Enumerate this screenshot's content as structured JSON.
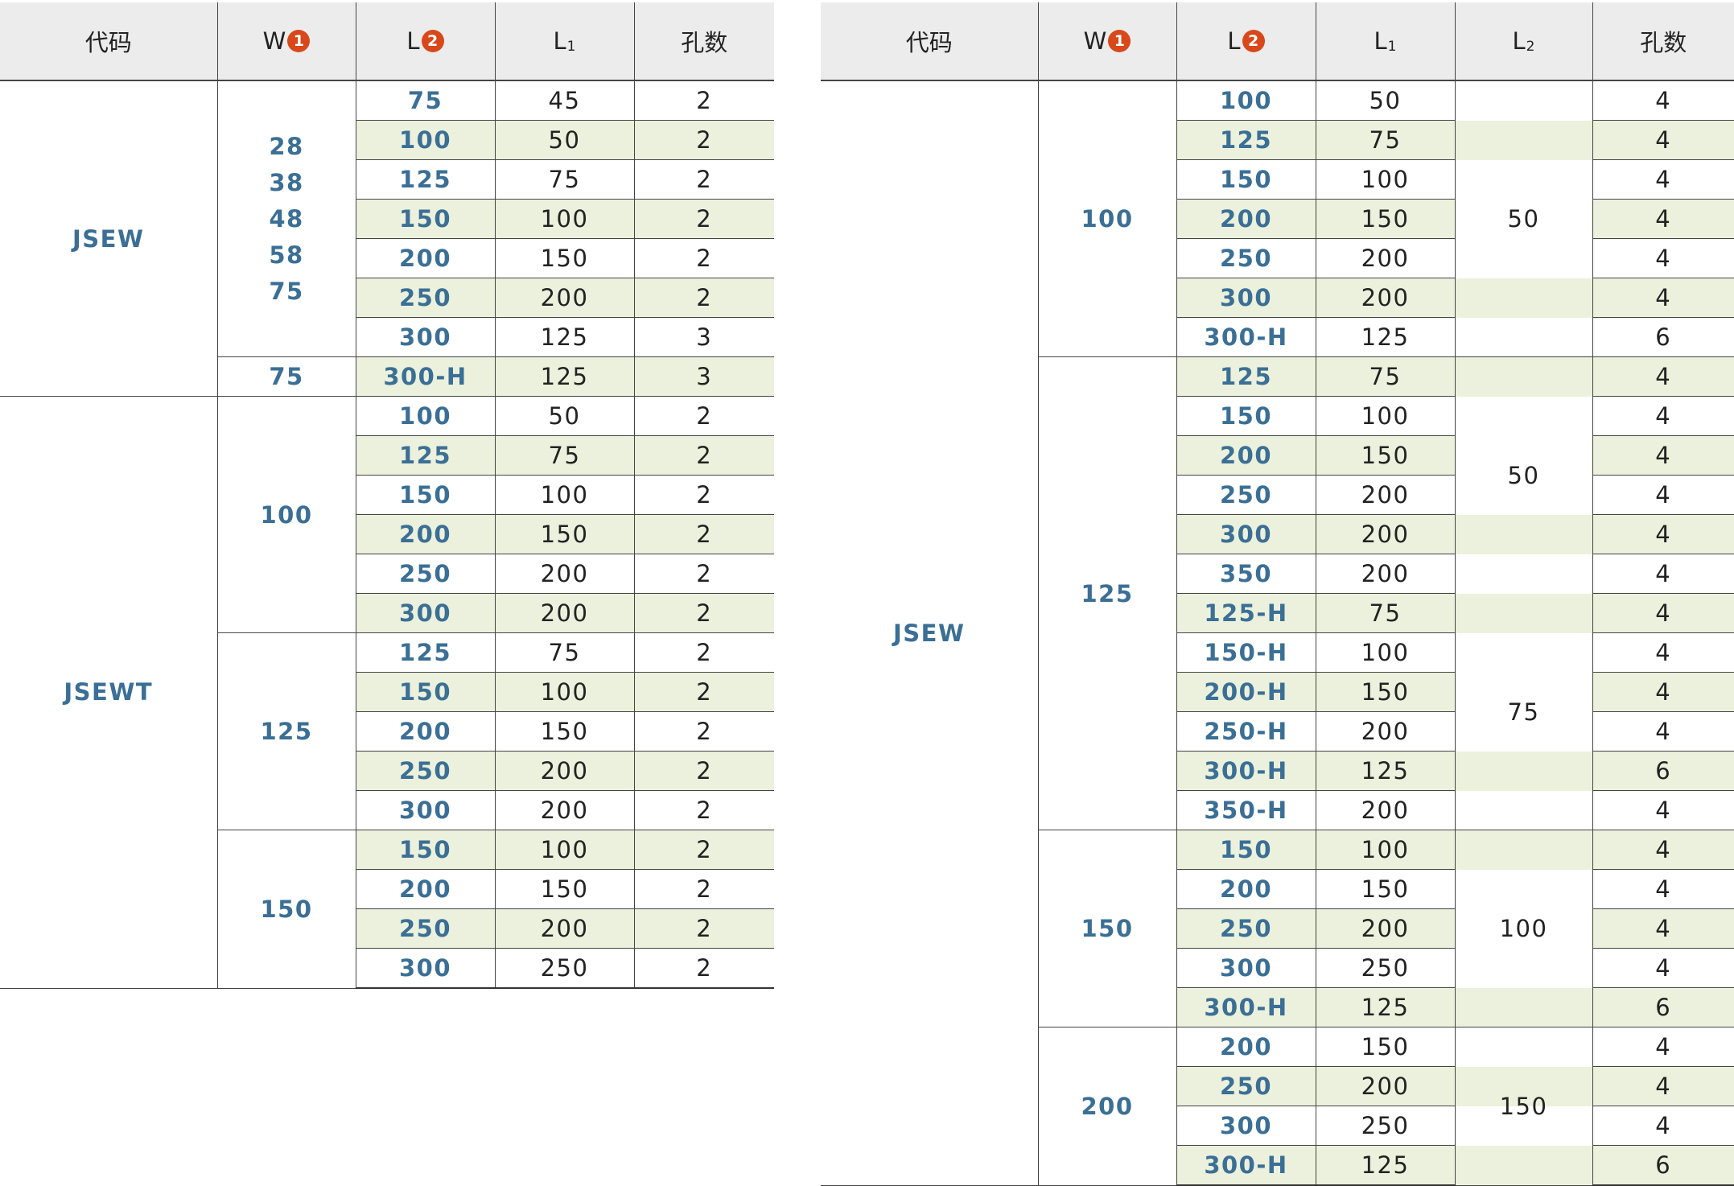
{
  "headers_left": {
    "code": "代码",
    "w": "W",
    "w_badge": "1",
    "l": "L",
    "l_badge": "2",
    "l1": "L",
    "l1_sub": "1",
    "holes": "孔数"
  },
  "headers_right": {
    "code": "代码",
    "w": "W",
    "w_badge": "1",
    "l": "L",
    "l_badge": "2",
    "l1": "L",
    "l1_sub": "1",
    "l2": "L",
    "l2_sub": "2",
    "holes": "孔数"
  },
  "left": {
    "jsew": {
      "code": "JSEW",
      "w_values": [
        "28",
        "38",
        "48",
        "58",
        "75"
      ],
      "rows": [
        {
          "L": "75",
          "L1": "45",
          "holes": "2"
        },
        {
          "L": "100",
          "L1": "50",
          "holes": "2"
        },
        {
          "L": "125",
          "L1": "75",
          "holes": "2"
        },
        {
          "L": "150",
          "L1": "100",
          "holes": "2"
        },
        {
          "L": "200",
          "L1": "150",
          "holes": "2"
        },
        {
          "L": "250",
          "L1": "200",
          "holes": "2"
        },
        {
          "L": "300",
          "L1": "125",
          "holes": "3"
        }
      ],
      "w_extra": "75",
      "extra_row": {
        "L": "300-H",
        "L1": "125",
        "holes": "3"
      }
    },
    "jsewt": {
      "code": "JSEWT",
      "groups": [
        {
          "W": "100",
          "rows": [
            {
              "L": "100",
              "L1": "50",
              "holes": "2"
            },
            {
              "L": "125",
              "L1": "75",
              "holes": "2"
            },
            {
              "L": "150",
              "L1": "100",
              "holes": "2"
            },
            {
              "L": "200",
              "L1": "150",
              "holes": "2"
            },
            {
              "L": "250",
              "L1": "200",
              "holes": "2"
            },
            {
              "L": "300",
              "L1": "200",
              "holes": "2"
            }
          ]
        },
        {
          "W": "125",
          "rows": [
            {
              "L": "125",
              "L1": "75",
              "holes": "2"
            },
            {
              "L": "150",
              "L1": "100",
              "holes": "2"
            },
            {
              "L": "200",
              "L1": "150",
              "holes": "2"
            },
            {
              "L": "250",
              "L1": "200",
              "holes": "2"
            },
            {
              "L": "300",
              "L1": "200",
              "holes": "2"
            }
          ]
        },
        {
          "W": "150",
          "rows": [
            {
              "L": "150",
              "L1": "100",
              "holes": "2"
            },
            {
              "L": "200",
              "L1": "150",
              "holes": "2"
            },
            {
              "L": "250",
              "L1": "200",
              "holes": "2"
            },
            {
              "L": "300",
              "L1": "250",
              "holes": "2"
            }
          ]
        }
      ]
    }
  },
  "right": {
    "code": "JSEW",
    "groups": [
      {
        "W": "100",
        "l2_labels": [
          "50"
        ],
        "rows": [
          {
            "L": "100",
            "L1": "50",
            "holes": "4"
          },
          {
            "L": "125",
            "L1": "75",
            "holes": "4"
          },
          {
            "L": "150",
            "L1": "100",
            "holes": "4"
          },
          {
            "L": "200",
            "L1": "150",
            "holes": "4"
          },
          {
            "L": "250",
            "L1": "200",
            "holes": "4"
          },
          {
            "L": "300",
            "L1": "200",
            "holes": "4"
          },
          {
            "L": "300-H",
            "L1": "125",
            "holes": "6"
          }
        ]
      },
      {
        "W": "125",
        "l2_labels": [
          "50",
          "75"
        ],
        "rows": [
          {
            "L": "125",
            "L1": "75",
            "holes": "4"
          },
          {
            "L": "150",
            "L1": "100",
            "holes": "4"
          },
          {
            "L": "200",
            "L1": "150",
            "holes": "4"
          },
          {
            "L": "250",
            "L1": "200",
            "holes": "4"
          },
          {
            "L": "300",
            "L1": "200",
            "holes": "4"
          },
          {
            "L": "350",
            "L1": "200",
            "holes": "4"
          },
          {
            "L": "125-H",
            "L1": "75",
            "holes": "4"
          },
          {
            "L": "150-H",
            "L1": "100",
            "holes": "4"
          },
          {
            "L": "200-H",
            "L1": "150",
            "holes": "4"
          },
          {
            "L": "250-H",
            "L1": "200",
            "holes": "4"
          },
          {
            "L": "300-H",
            "L1": "125",
            "holes": "6"
          },
          {
            "L": "350-H",
            "L1": "200",
            "holes": "4"
          }
        ]
      },
      {
        "W": "150",
        "l2_labels": [
          "100"
        ],
        "rows": [
          {
            "L": "150",
            "L1": "100",
            "holes": "4"
          },
          {
            "L": "200",
            "L1": "150",
            "holes": "4"
          },
          {
            "L": "250",
            "L1": "200",
            "holes": "4"
          },
          {
            "L": "300",
            "L1": "250",
            "holes": "4"
          },
          {
            "L": "300-H",
            "L1": "125",
            "holes": "6"
          }
        ]
      },
      {
        "W": "200",
        "l2_labels": [
          "150"
        ],
        "rows": [
          {
            "L": "200",
            "L1": "150",
            "holes": "4"
          },
          {
            "L": "250",
            "L1": "200",
            "holes": "4"
          },
          {
            "L": "300",
            "L1": "250",
            "holes": "4"
          },
          {
            "L": "300-H",
            "L1": "125",
            "holes": "6"
          }
        ]
      }
    ]
  },
  "colors": {
    "accent_text": "#3b6f95",
    "row_stripe": "#ebf1dc",
    "header_bg": "#ececec",
    "badge": "#d8481a"
  }
}
